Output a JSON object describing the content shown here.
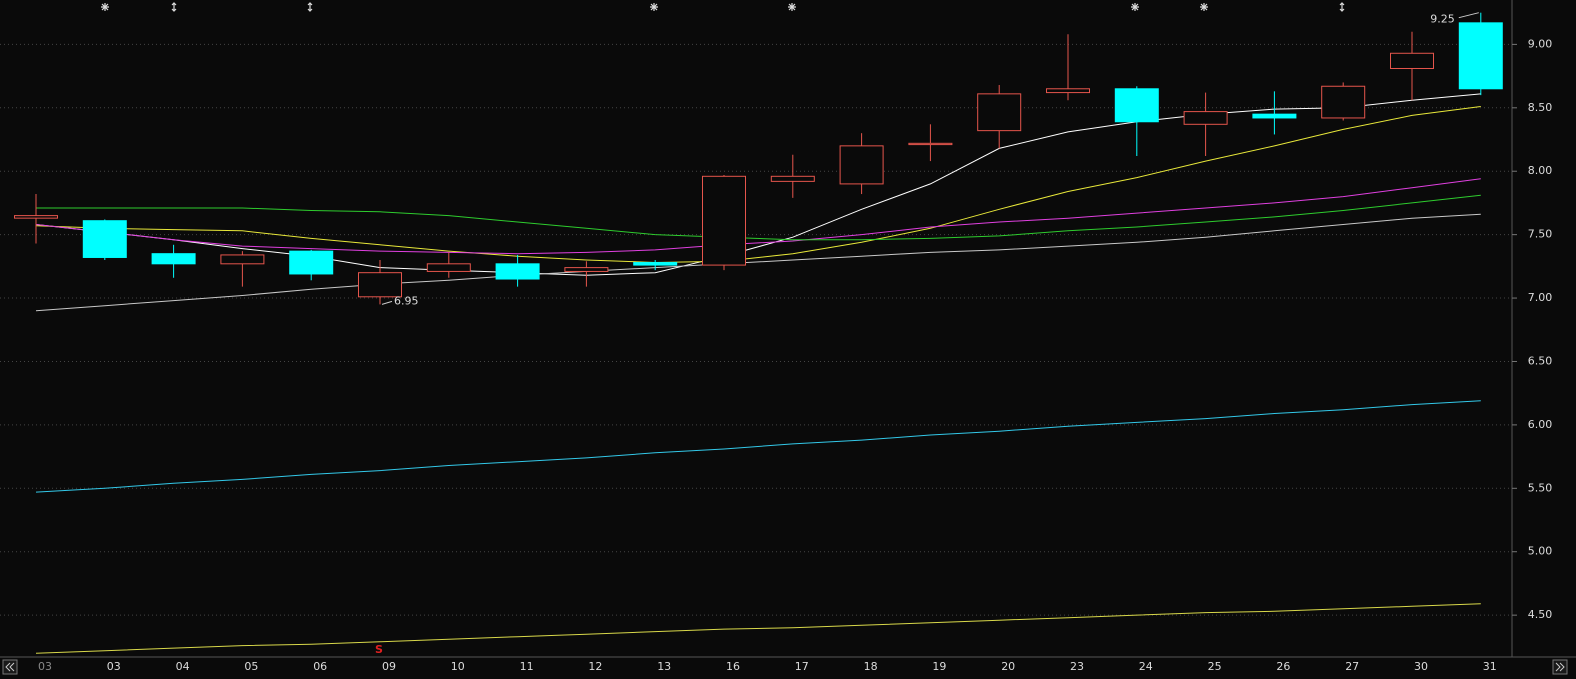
{
  "chart_data": {
    "type": "candlestick",
    "categories": [
      "03",
      "03",
      "04",
      "05",
      "06",
      "09",
      "10",
      "11",
      "12",
      "13",
      "16",
      "17",
      "18",
      "19",
      "20",
      "23",
      "24",
      "25",
      "26",
      "27",
      "30",
      "31"
    ],
    "open": [
      7.63,
      7.61,
      7.35,
      7.27,
      7.37,
      7.01,
      7.21,
      7.27,
      7.21,
      7.28,
      7.26,
      7.92,
      7.9,
      8.21,
      8.32,
      8.62,
      8.65,
      8.37,
      8.45,
      8.42,
      8.81,
      9.17
    ],
    "high": [
      7.82,
      7.62,
      7.42,
      7.37,
      7.38,
      7.3,
      7.36,
      7.34,
      7.29,
      7.3,
      7.97,
      8.13,
      8.3,
      8.37,
      8.68,
      9.08,
      8.67,
      8.62,
      8.63,
      8.7,
      9.1,
      9.25
    ],
    "low": [
      7.43,
      7.3,
      7.16,
      7.09,
      7.14,
      6.95,
      7.16,
      7.09,
      7.09,
      7.22,
      7.22,
      7.79,
      7.82,
      8.08,
      8.18,
      8.56,
      8.12,
      8.12,
      8.29,
      8.4,
      8.56,
      8.6
    ],
    "close": [
      7.65,
      7.32,
      7.27,
      7.34,
      7.19,
      7.2,
      7.27,
      7.15,
      7.24,
      7.26,
      7.96,
      7.96,
      8.2,
      8.22,
      8.61,
      8.65,
      8.39,
      8.47,
      8.42,
      8.67,
      8.93,
      8.65
    ],
    "up_color": "#e5554c",
    "down_color": "#00ffff",
    "lines": [
      {
        "color": "#ffffff",
        "values": [
          7.58,
          7.52,
          7.46,
          7.39,
          7.33,
          7.24,
          7.22,
          7.2,
          7.18,
          7.2,
          7.33,
          7.48,
          7.7,
          7.9,
          8.18,
          8.31,
          8.39,
          8.45,
          8.49,
          8.5,
          8.56,
          8.61
        ]
      },
      {
        "color": "#e8e83a",
        "values": [
          7.57,
          7.55,
          7.54,
          7.53,
          7.47,
          7.42,
          7.37,
          7.33,
          7.3,
          7.28,
          7.29,
          7.35,
          7.44,
          7.55,
          7.7,
          7.84,
          7.95,
          8.08,
          8.2,
          8.33,
          8.44,
          8.51
        ]
      },
      {
        "color": "#e040e0",
        "values": [
          7.58,
          7.52,
          7.46,
          7.41,
          7.39,
          7.37,
          7.36,
          7.35,
          7.36,
          7.38,
          7.42,
          7.45,
          7.5,
          7.56,
          7.6,
          7.63,
          7.67,
          7.71,
          7.75,
          7.8,
          7.87,
          7.94
        ]
      },
      {
        "color": "#2ecc2e",
        "values": [
          7.71,
          7.71,
          7.71,
          7.71,
          7.69,
          7.68,
          7.65,
          7.6,
          7.55,
          7.5,
          7.48,
          7.46,
          7.46,
          7.47,
          7.49,
          7.53,
          7.56,
          7.6,
          7.64,
          7.69,
          7.75,
          7.81
        ]
      },
      {
        "color": "#c8c8c8",
        "values": [
          6.9,
          6.94,
          6.98,
          7.02,
          7.07,
          7.11,
          7.14,
          7.18,
          7.21,
          7.24,
          7.27,
          7.3,
          7.33,
          7.36,
          7.38,
          7.41,
          7.44,
          7.48,
          7.53,
          7.58,
          7.63,
          7.66
        ]
      },
      {
        "color": "#33c8e8",
        "values": [
          5.47,
          5.5,
          5.54,
          5.57,
          5.61,
          5.64,
          5.68,
          5.71,
          5.74,
          5.78,
          5.81,
          5.85,
          5.88,
          5.92,
          5.95,
          5.99,
          6.02,
          6.05,
          6.09,
          6.12,
          6.16,
          6.19
        ]
      },
      {
        "color": "#d8d84a",
        "values": [
          4.2,
          4.22,
          4.24,
          4.26,
          4.27,
          4.29,
          4.31,
          4.33,
          4.35,
          4.37,
          4.39,
          4.4,
          4.42,
          4.44,
          4.46,
          4.48,
          4.5,
          4.52,
          4.53,
          4.55,
          4.57,
          4.59
        ]
      }
    ],
    "max_label": 9.25,
    "min_label": 6.95,
    "signal_label": "S",
    "ylim": [
      4.17,
      9.35
    ],
    "yticks": [
      {
        "value": 4.5,
        "label": "4.50"
      },
      {
        "value": 5,
        "label": "5.00"
      },
      {
        "value": 5.5,
        "label": "5.50"
      },
      {
        "value": 6,
        "label": "6.00"
      },
      {
        "value": 6.5,
        "label": "6.50"
      },
      {
        "value": 7,
        "label": "7.00"
      },
      {
        "value": 7.5,
        "label": "7.50"
      },
      {
        "value": 8,
        "label": "8.00"
      },
      {
        "value": 8.5,
        "label": "8.50"
      },
      {
        "value": 9,
        "label": "9.00"
      }
    ],
    "grid": true
  }
}
